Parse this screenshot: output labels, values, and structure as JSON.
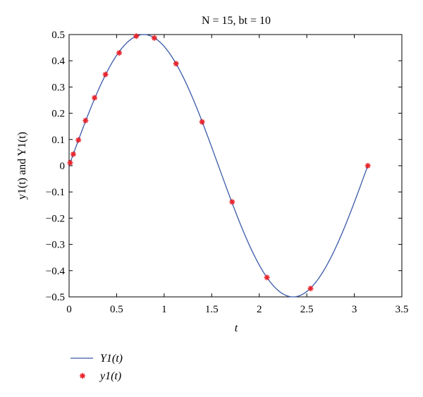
{
  "chart_data": {
    "type": "line",
    "title": "N = 15, bt = 10",
    "xlabel": "t",
    "ylabel": "y1(t) and Y1(t)",
    "xlim": [
      0,
      3.5
    ],
    "ylim": [
      -0.5,
      0.5
    ],
    "xticks": [
      "0",
      "0.5",
      "1",
      "1.5",
      "2",
      "2.5",
      "3",
      "3.5"
    ],
    "yticks": [
      "0.5",
      "0.4",
      "0.3",
      "0.2",
      "0.1",
      "0",
      "-0.1",
      "-0.2",
      "-0.3",
      "-0.4",
      "-0.5"
    ],
    "grid": false,
    "legend_position": "below-left",
    "series": [
      {
        "name": "Y1(t)",
        "style": "line",
        "color": "#3a5aa8",
        "function": "0.5*sin(2t)",
        "x_range": [
          0,
          3.1416
        ]
      },
      {
        "name": "y1(t)",
        "style": "markers",
        "color": "#e8232b",
        "x": [
          0.011,
          0.044,
          0.098,
          0.173,
          0.268,
          0.383,
          0.527,
          0.707,
          0.896,
          1.125,
          1.399,
          1.715,
          2.081,
          2.54,
          3.142
        ],
        "y": [
          0.011,
          0.044,
          0.098,
          0.172,
          0.259,
          0.348,
          0.43,
          0.494,
          0.487,
          0.389,
          0.167,
          -0.138,
          -0.426,
          -0.468,
          0.0
        ]
      }
    ]
  }
}
